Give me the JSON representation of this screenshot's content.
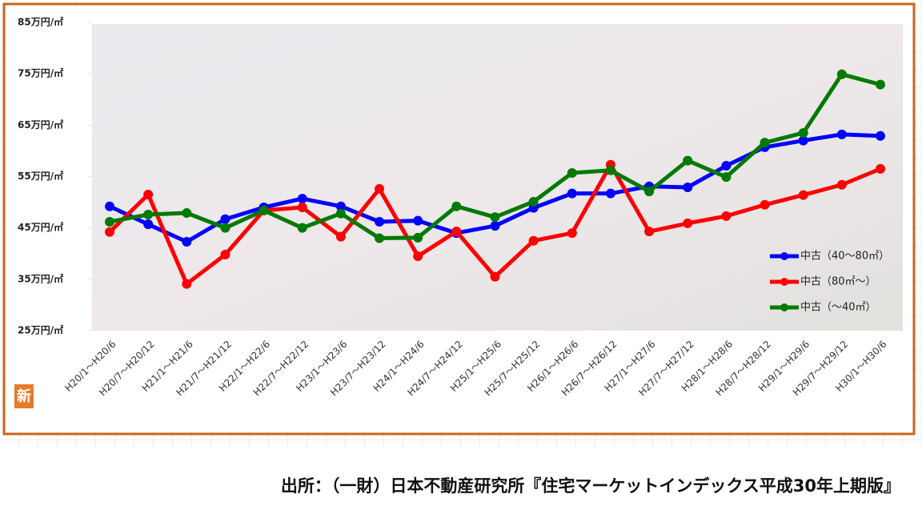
{
  "chart_data": {
    "type": "line",
    "categories": [
      "H20/1～H20/6",
      "H20/7～H20/12",
      "H21/1～H21/6",
      "H21/7～H21/12",
      "H22/1～H22/6",
      "H22/7～H22/12",
      "H23/1～H23/6",
      "H23/7～H23/12",
      "H24/1～H24/6",
      "H24/7～H24/12",
      "H25/1～H25/6",
      "H25/7～H25/12",
      "H26/1～H26/6",
      "H26/7～H26/12",
      "H27/1～H27/6",
      "H27/7～H27/12",
      "H28/1～H28/6",
      "H28/7～H28/12",
      "H29/1～H29/6",
      "H29/7～H29/12",
      "H30/1～H30/6"
    ],
    "series": [
      {
        "name": "中古（40～80㎡）",
        "color": "#0000ff",
        "values": [
          49.2,
          45.7,
          42.3,
          46.7,
          49.0,
          50.7,
          49.2,
          46.2,
          46.4,
          44.0,
          45.4,
          48.9,
          51.7,
          51.7,
          53.1,
          52.9,
          57.1,
          60.7,
          62.0,
          63.2,
          62.9
        ]
      },
      {
        "name": "中古（80㎡～）",
        "color": "#ff0000",
        "values": [
          44.2,
          51.5,
          34.1,
          39.8,
          48.4,
          49.0,
          43.3,
          52.6,
          39.5,
          44.3,
          35.5,
          42.5,
          44.0,
          57.3,
          44.3,
          45.9,
          47.3,
          49.5,
          51.4,
          53.4,
          56.5
        ]
      },
      {
        "name": "中古（～40㎡）",
        "color": "#007a00",
        "values": [
          46.2,
          47.6,
          47.9,
          45.0,
          48.4,
          45.0,
          47.8,
          43.0,
          43.1,
          49.2,
          47.1,
          50.1,
          55.7,
          56.2,
          52.1,
          58.1,
          54.9,
          61.6,
          63.5,
          74.9,
          72.9
        ]
      }
    ],
    "ylim": [
      25,
      85
    ],
    "yticks": [
      {
        "value": 25,
        "label": "25万円/㎡"
      },
      {
        "value": 35,
        "label": "35万円/㎡"
      },
      {
        "value": 45,
        "label": "45万円/㎡"
      },
      {
        "value": 55,
        "label": "55万円/㎡"
      },
      {
        "value": 65,
        "label": "65万円/㎡"
      },
      {
        "value": 75,
        "label": "75万円/㎡"
      },
      {
        "value": 85,
        "label": "85万円/㎡"
      }
    ],
    "legend": "lower right"
  },
  "badge": "新",
  "source": "出所：（一財）日本不動産研究所『住宅マーケットインデックス平成30年上期版』"
}
